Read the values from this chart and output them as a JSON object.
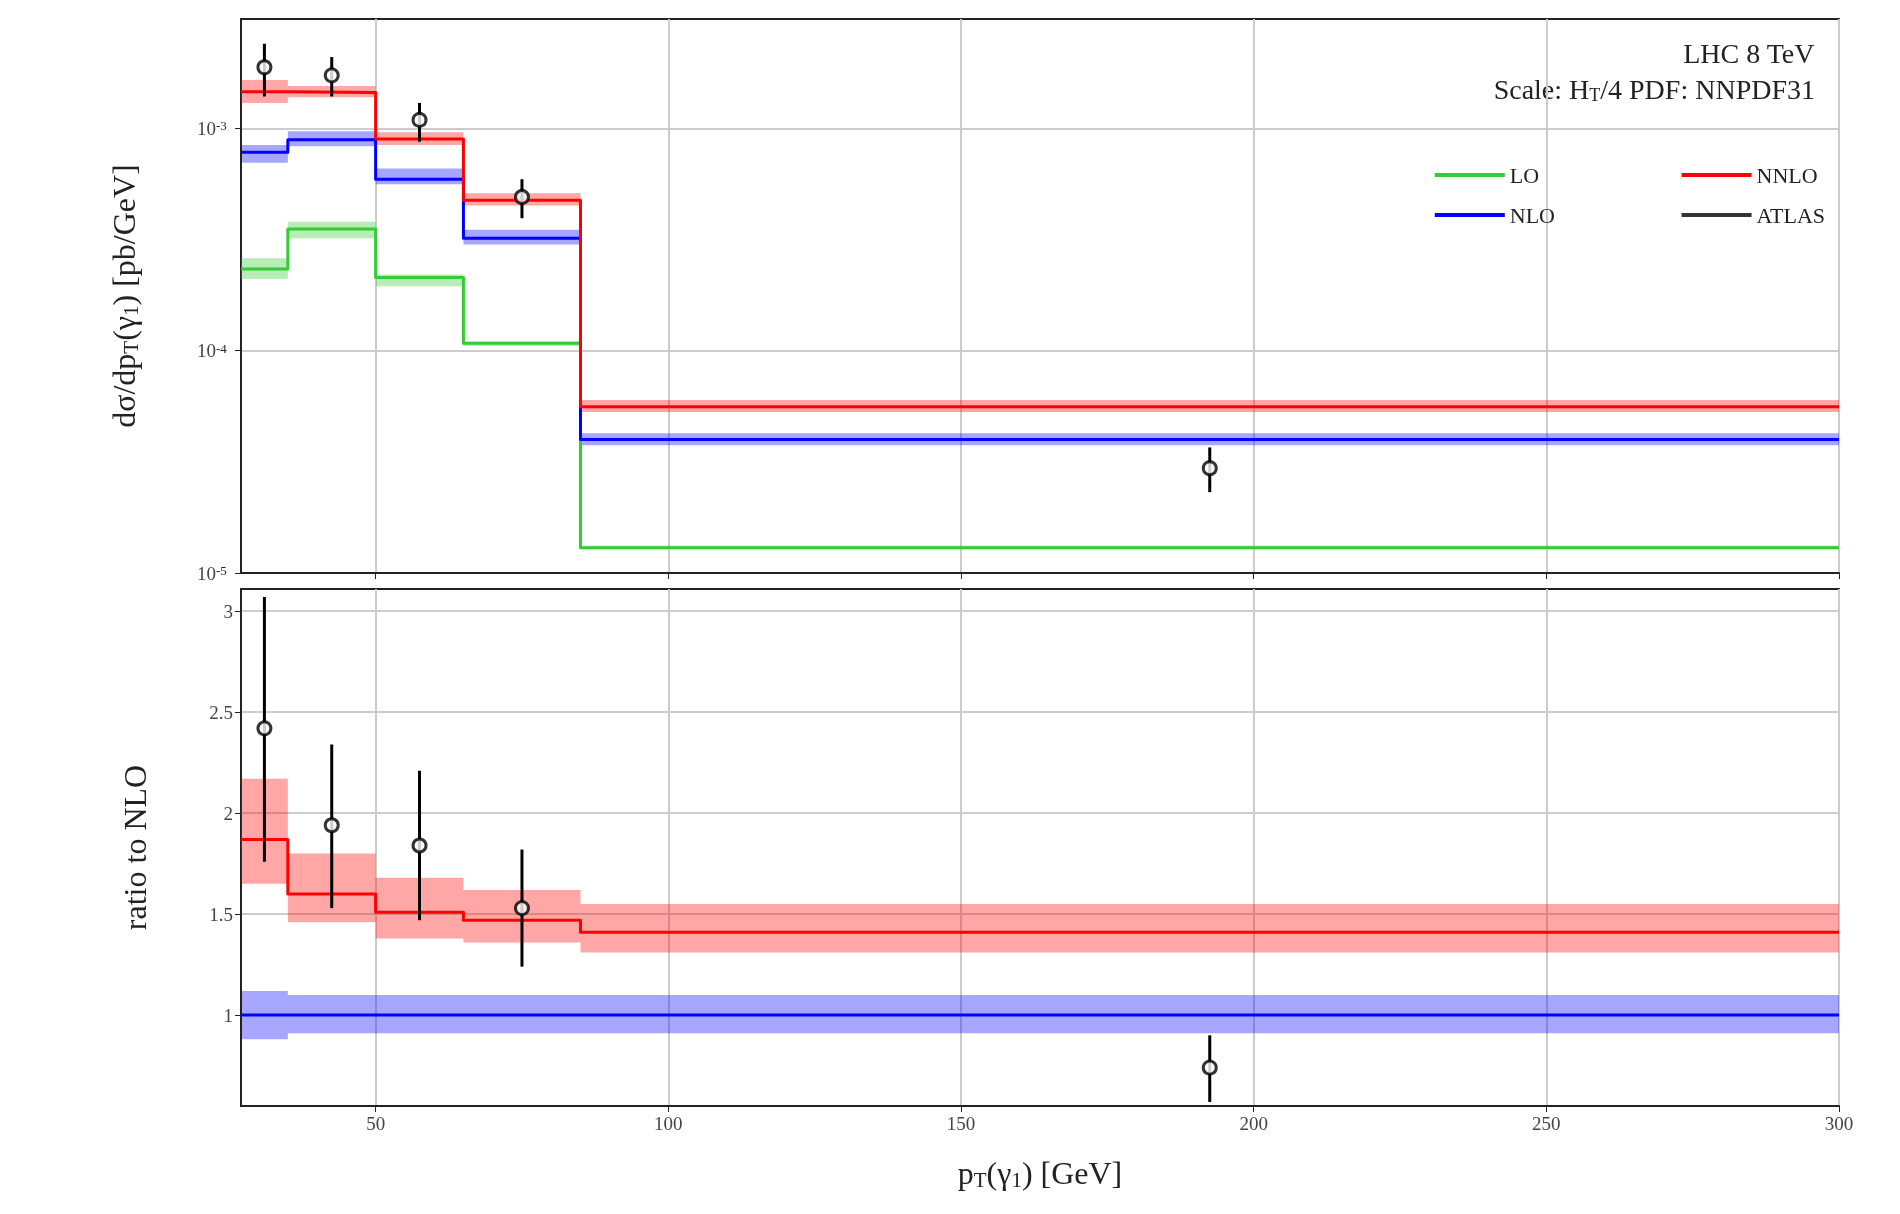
{
  "chart_data": [
    {
      "type": "step",
      "annotations": [
        "LHC 8 TeV",
        "Scale: H$_{T}$/4 PDF: NNPDF31"
      ],
      "ylabel": "dσ/dp$_{T}$(γ$_{1}$) [pb/GeV]",
      "x": [
        27,
        35,
        50,
        65,
        85,
        300
      ],
      "xlim": [
        27,
        300
      ],
      "xticks": [
        50,
        100,
        150,
        200,
        250,
        300
      ],
      "ylim": [
        1e-05,
        0.0031
      ],
      "yticks": [
        {
          "value": 1e-05,
          "label": "10$^{-5}$"
        },
        {
          "value": 0.0001,
          "label": "10$^{-4}$"
        },
        {
          "value": 0.001,
          "label": "10$^{-3}$"
        }
      ],
      "log": "y",
      "grid": true,
      "legend": "top right",
      "tick_labels": "y",
      "series": [
        {
          "name": "LO",
          "color": "#33cc33",
          "values": [
            0.000233,
            0.000352,
            0.000213,
            0.000108,
            1.3e-05,
            1.3e-05
          ],
          "lower": [
            0.00021,
            0.00032,
            0.000195,
            0.000105,
            1.28e-05,
            1.28e-05
          ],
          "upper": [
            0.00026,
            0.00038,
            0.00022,
            0.00011,
            1.33e-05,
            1.33e-05
          ]
        },
        {
          "name": "NLO",
          "color": "#0000ff",
          "values": [
            0.00078,
            0.000887,
            0.00059,
            0.00032,
            3.98e-05,
            3.98e-05
          ],
          "lower": [
            0.0007,
            0.00083,
            0.00056,
            0.0003,
            3.75e-05,
            3.75e-05
          ],
          "upper": [
            0.00084,
            0.00097,
            0.00066,
            0.00035,
            4.25e-05,
            4.25e-05
          ]
        },
        {
          "name": "NNLO",
          "color": "#ff0000",
          "values": [
            0.00146,
            0.00145,
            0.000895,
            0.000475,
            5.6e-05,
            5.6e-05
          ],
          "lower": [
            0.0013,
            0.00138,
            0.00084,
            0.00045,
            5.3e-05,
            5.3e-05
          ],
          "upper": [
            0.00165,
            0.00155,
            0.00096,
            0.00051,
            6e-05,
            6e-05
          ]
        },
        {
          "name": "ATLAS",
          "type": "scatter",
          "marker": "circle",
          "color": "#000000",
          "x": [
            31,
            42.5,
            57.5,
            75,
            192.5
          ],
          "values": [
            0.00188,
            0.00173,
            0.00109,
            0.000491,
            2.96e-05
          ],
          "errors": [
            [
              0.00139,
              0.0024
            ],
            [
              0.00139,
              0.00209
            ],
            [
              0.00087,
              0.0013
            ],
            [
              0.000394,
              0.00059
            ],
            [
              2.31e-05,
              3.67e-05
            ]
          ]
        }
      ]
    },
    {
      "type": "step",
      "ylabel": "ratio to NLO",
      "xlabel": "p$_{T}$(γ$_{1}$) [GeV]",
      "x": [
        27,
        35,
        50,
        65,
        85,
        300
      ],
      "xlim": [
        27,
        300
      ],
      "xticks": [
        50,
        100,
        150,
        200,
        250,
        300
      ],
      "ylim": [
        0.55,
        3.11
      ],
      "yticks": [
        1.0,
        1.5,
        2.0,
        2.5,
        3.0
      ],
      "grid": true,
      "series": [
        {
          "color": "#ff0000",
          "values": [
            1.87,
            1.6,
            1.51,
            1.47,
            1.41,
            1.41
          ],
          "lower": [
            1.65,
            1.46,
            1.38,
            1.36,
            1.31,
            1.31
          ],
          "upper": [
            2.17,
            1.8,
            1.68,
            1.62,
            1.55,
            1.55
          ]
        },
        {
          "color": "#0000ff",
          "values": [
            1.0,
            1.0,
            1.0,
            1.0,
            1.0,
            1.0
          ],
          "lower": [
            0.88,
            0.91,
            0.91,
            0.91,
            0.91,
            0.91
          ],
          "upper": [
            1.12,
            1.1,
            1.1,
            1.1,
            1.1,
            1.1
          ]
        },
        {
          "type": "scatter",
          "marker": "circle",
          "color": "#000000",
          "x": [
            31,
            42.5,
            57.5,
            75,
            192.5
          ],
          "values": [
            2.42,
            1.94,
            1.84,
            1.53,
            0.74
          ],
          "errors": [
            [
              1.76,
              3.07
            ],
            [
              1.53,
              2.34
            ],
            [
              1.47,
              2.21
            ],
            [
              1.24,
              1.82
            ],
            [
              0.57,
              0.9
            ]
          ]
        }
      ]
    }
  ]
}
